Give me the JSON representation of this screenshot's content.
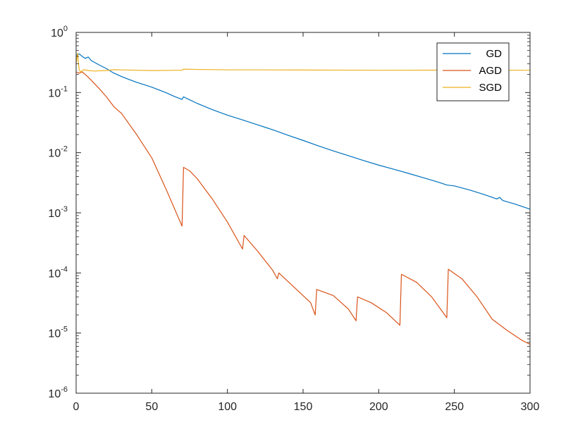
{
  "chart_data": {
    "type": "line",
    "title": "",
    "xlabel": "",
    "ylabel": "",
    "xlim": [
      0,
      300
    ],
    "ylim": [
      1e-06,
      1
    ],
    "y_scale": "log",
    "grid": false,
    "legend_position": "top-right",
    "x_ticks": [
      {
        "value": 0,
        "label": "0"
      },
      {
        "value": 50,
        "label": "50"
      },
      {
        "value": 100,
        "label": "100"
      },
      {
        "value": 150,
        "label": "150"
      },
      {
        "value": 200,
        "label": "200"
      },
      {
        "value": 250,
        "label": "250"
      },
      {
        "value": 300,
        "label": "300"
      }
    ],
    "y_ticks": [
      {
        "value": 1e-06,
        "base": "10",
        "exp": "-6"
      },
      {
        "value": 1e-05,
        "base": "10",
        "exp": "-5"
      },
      {
        "value": 0.0001,
        "base": "10",
        "exp": "-4"
      },
      {
        "value": 0.001,
        "base": "10",
        "exp": "-3"
      },
      {
        "value": 0.01,
        "base": "10",
        "exp": "-2"
      },
      {
        "value": 0.1,
        "base": "10",
        "exp": "-1"
      },
      {
        "value": 1,
        "base": "10",
        "exp": "0"
      }
    ],
    "series": [
      {
        "name": "GD",
        "color": "#0072BD",
        "points": [
          [
            0,
            0.42
          ],
          [
            2,
            0.44
          ],
          [
            4,
            0.4
          ],
          [
            6,
            0.37
          ],
          [
            8,
            0.39
          ],
          [
            10,
            0.34
          ],
          [
            15,
            0.29
          ],
          [
            20,
            0.25
          ],
          [
            25,
            0.21
          ],
          [
            30,
            0.185
          ],
          [
            35,
            0.165
          ],
          [
            40,
            0.148
          ],
          [
            45,
            0.135
          ],
          [
            50,
            0.123
          ],
          [
            55,
            0.11
          ],
          [
            60,
            0.098
          ],
          [
            65,
            0.086
          ],
          [
            70,
            0.077
          ],
          [
            71,
            0.085
          ],
          [
            73,
            0.08
          ],
          [
            80,
            0.066
          ],
          [
            90,
            0.052
          ],
          [
            100,
            0.042
          ],
          [
            110,
            0.035
          ],
          [
            120,
            0.029
          ],
          [
            130,
            0.024
          ],
          [
            140,
            0.0195
          ],
          [
            150,
            0.016
          ],
          [
            160,
            0.013
          ],
          [
            170,
            0.0107
          ],
          [
            180,
            0.0089
          ],
          [
            190,
            0.0074
          ],
          [
            200,
            0.0062
          ],
          [
            210,
            0.0053
          ],
          [
            220,
            0.0045
          ],
          [
            230,
            0.0038
          ],
          [
            240,
            0.0032
          ],
          [
            245,
            0.0029
          ],
          [
            250,
            0.0028
          ],
          [
            260,
            0.0024
          ],
          [
            270,
            0.002
          ],
          [
            278,
            0.0017
          ],
          [
            280,
            0.0018
          ],
          [
            282,
            0.0016
          ],
          [
            290,
            0.0014
          ],
          [
            300,
            0.00115
          ]
        ]
      },
      {
        "name": "AGD",
        "color": "#D95319",
        "points": [
          [
            0,
            0.22
          ],
          [
            2,
            0.21
          ],
          [
            4,
            0.22
          ],
          [
            6,
            0.2
          ],
          [
            8,
            0.18
          ],
          [
            10,
            0.16
          ],
          [
            15,
            0.118
          ],
          [
            20,
            0.085
          ],
          [
            25,
            0.058
          ],
          [
            30,
            0.045
          ],
          [
            40,
            0.02
          ],
          [
            50,
            0.0082
          ],
          [
            60,
            0.0023
          ],
          [
            70,
            0.0006
          ],
          [
            71,
            0.0057
          ],
          [
            75,
            0.005
          ],
          [
            80,
            0.0037
          ],
          [
            90,
            0.0017
          ],
          [
            100,
            0.0007
          ],
          [
            110,
            0.00025
          ],
          [
            111,
            0.00042
          ],
          [
            120,
            0.00023
          ],
          [
            130,
            0.00011
          ],
          [
            133,
            8e-05
          ],
          [
            134,
            0.0001
          ],
          [
            145,
            5.5e-05
          ],
          [
            155,
            3.2e-05
          ],
          [
            158,
            2e-05
          ],
          [
            159,
            5.3e-05
          ],
          [
            170,
            4.2e-05
          ],
          [
            180,
            2.5e-05
          ],
          [
            185,
            1.6e-05
          ],
          [
            186,
            4e-05
          ],
          [
            195,
            3.2e-05
          ],
          [
            205,
            2.2e-05
          ],
          [
            214,
            1.35e-05
          ],
          [
            215,
            9.5e-05
          ],
          [
            225,
            7e-05
          ],
          [
            235,
            4e-05
          ],
          [
            245,
            1.8e-05
          ],
          [
            246,
            0.000115
          ],
          [
            255,
            8e-05
          ],
          [
            265,
            4e-05
          ],
          [
            275,
            1.7e-05
          ],
          [
            285,
            1.1e-05
          ],
          [
            295,
            7.5e-06
          ],
          [
            300,
            6.5e-06
          ]
        ]
      },
      {
        "name": "SGD",
        "color": "#EDB120",
        "points": [
          [
            0,
            0.3
          ],
          [
            1,
            0.45
          ],
          [
            1.5,
            0.32
          ],
          [
            2,
            0.24
          ],
          [
            3,
            0.22
          ],
          [
            5,
            0.24
          ],
          [
            8,
            0.232
          ],
          [
            12,
            0.228
          ],
          [
            20,
            0.232
          ],
          [
            25,
            0.24
          ],
          [
            30,
            0.238
          ],
          [
            50,
            0.232
          ],
          [
            70,
            0.235
          ],
          [
            71,
            0.245
          ],
          [
            80,
            0.242
          ],
          [
            100,
            0.239
          ],
          [
            150,
            0.237
          ],
          [
            200,
            0.235
          ],
          [
            250,
            0.236
          ],
          [
            300,
            0.235
          ]
        ]
      }
    ]
  }
}
